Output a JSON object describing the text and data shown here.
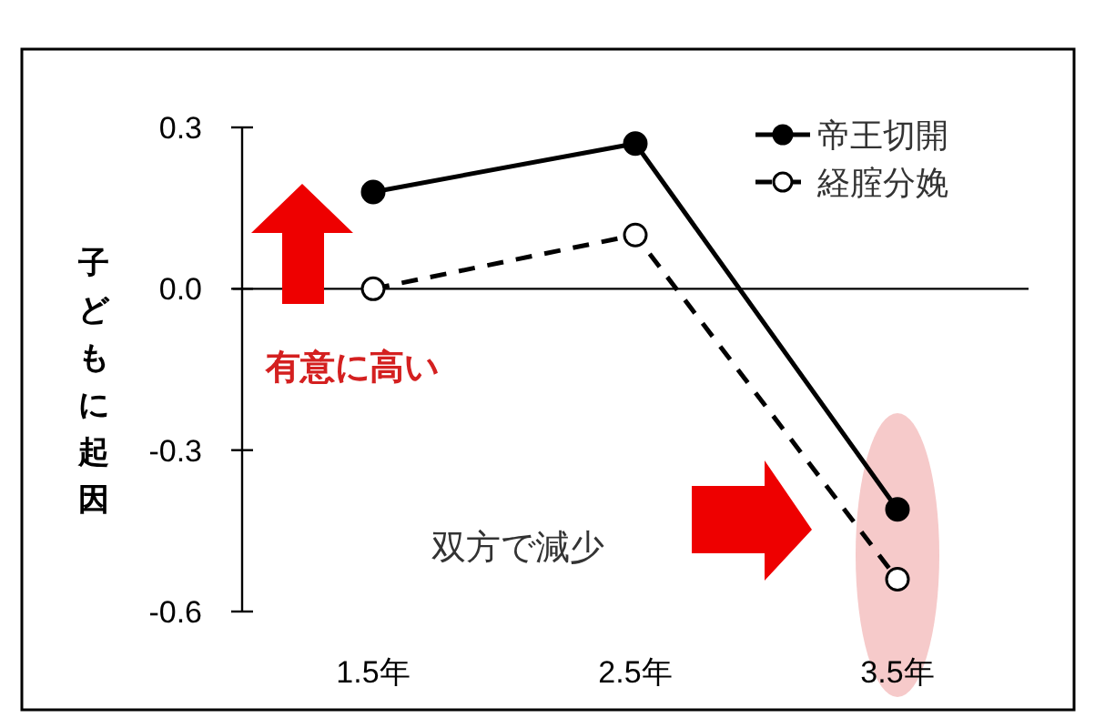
{
  "chart_data": {
    "type": "line",
    "ylabel": "子どもに起因",
    "categories": [
      "1.5年",
      "2.5年",
      "3.5年"
    ],
    "series": [
      {
        "name": "帝王切開",
        "color": "#000000",
        "values": [
          0.18,
          0.27,
          -0.41
        ],
        "marker": "circle",
        "line_style": "solid"
      },
      {
        "name": "経腟分娩",
        "color": "#000000",
        "values": [
          0.0,
          0.1,
          -0.54
        ],
        "marker": "circle",
        "line_style": "dashed"
      }
    ],
    "ylim": [
      -0.6,
      0.3
    ],
    "yticks": [
      {
        "value": 0.3,
        "label": "0.3"
      },
      {
        "value": 0,
        "label": "0.0"
      },
      {
        "value": -0.3,
        "label": "-0.3"
      },
      {
        "value": -0.6,
        "label": "-0.6"
      }
    ],
    "ref_lines": [
      {
        "axis": "y",
        "value": 0
      }
    ],
    "annotations": [
      "有意に高い",
      "双方で減少"
    ],
    "legend": "top right",
    "grid": false
  }
}
